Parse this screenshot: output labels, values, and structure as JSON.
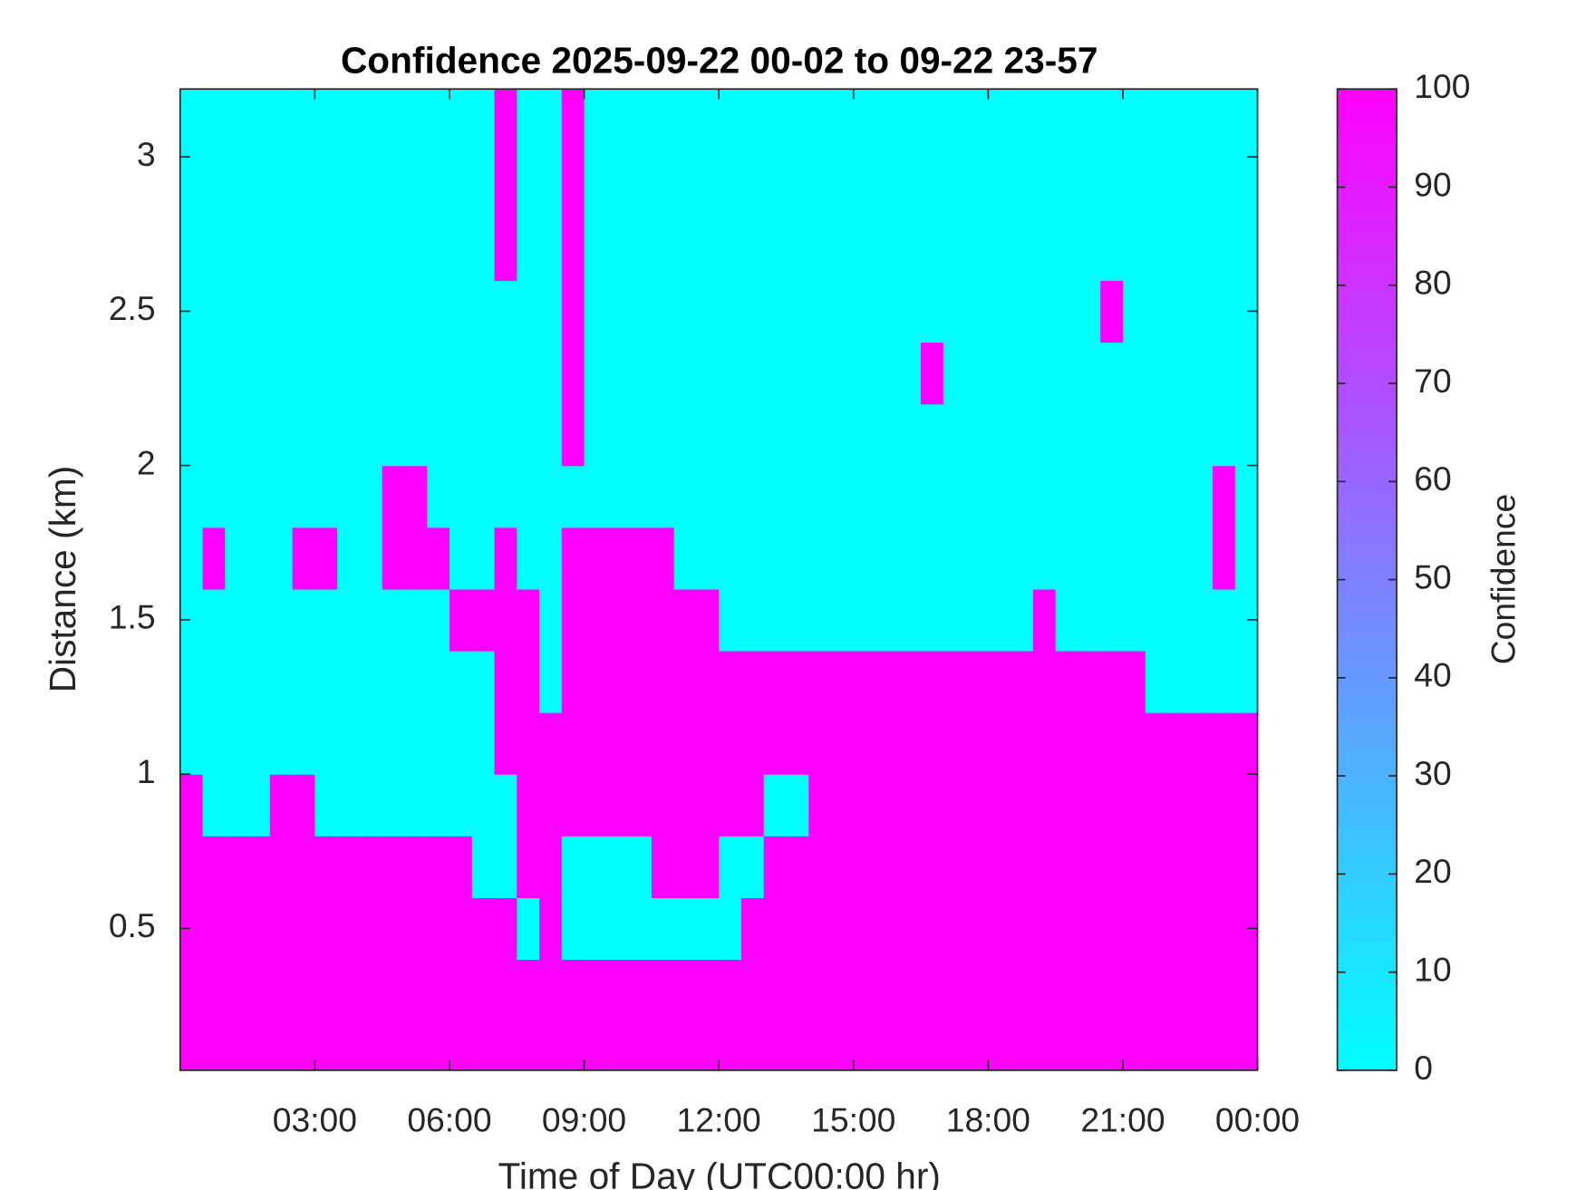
{
  "chart_data": {
    "type": "heatmap",
    "title": "Confidence 2025-09-22 00-02 to 09-22 23-57",
    "x_label": "Time of Day (UTC00:00 hr)",
    "y_label": "Distance (km)",
    "colorbar_label": "Confidence",
    "colormap": [
      "#00ffff",
      "#ff00ff"
    ],
    "clim": [
      0,
      100
    ],
    "cticks": [
      0,
      10,
      20,
      30,
      40,
      50,
      60,
      70,
      80,
      90,
      100
    ],
    "xlim": [
      0,
      24
    ],
    "xticks": [
      {
        "value": 3,
        "label": "03:00"
      },
      {
        "value": 6,
        "label": "06:00"
      },
      {
        "value": 9,
        "label": "09:00"
      },
      {
        "value": 12,
        "label": "12:00"
      },
      {
        "value": 15,
        "label": "15:00"
      },
      {
        "value": 18,
        "label": "18:00"
      },
      {
        "value": 21,
        "label": "21:00"
      },
      {
        "value": 24,
        "label": "00:00"
      }
    ],
    "ylim": [
      0.04,
      3.22
    ],
    "yticks": [
      0.5,
      1,
      1.5,
      2,
      2.5,
      3
    ],
    "x": [
      0.25,
      0.75,
      1.25,
      1.75,
      2.25,
      2.75,
      3.25,
      3.75,
      4.25,
      4.75,
      5.25,
      5.75,
      6.25,
      6.75,
      7.25,
      7.75,
      8.25,
      8.75,
      9.25,
      9.75,
      10.25,
      10.75,
      11.25,
      11.75,
      12.25,
      12.75,
      13.25,
      13.75,
      14.25,
      14.75,
      15.25,
      15.75,
      16.25,
      16.75,
      17.25,
      17.75,
      18.25,
      18.75,
      19.25,
      19.75,
      20.25,
      20.75,
      21.25,
      21.75,
      22.25,
      22.75,
      23.25,
      23.75
    ],
    "y": [
      0.1,
      0.3,
      0.5,
      0.7,
      0.9,
      1.1,
      1.3,
      1.5,
      1.7,
      1.9,
      2.1,
      2.3,
      2.5,
      2.7,
      2.9,
      3.1
    ],
    "values": [
      [
        100,
        100,
        100,
        100,
        100,
        100,
        100,
        100,
        100,
        100,
        100,
        100,
        100,
        100,
        100,
        100,
        100,
        100,
        100,
        100,
        100,
        100,
        100,
        100,
        100,
        100,
        100,
        100,
        100,
        100,
        100,
        100,
        100,
        100,
        100,
        100,
        100,
        100,
        100,
        100,
        100,
        100,
        100,
        100,
        100,
        100,
        100,
        100
      ],
      [
        100,
        100,
        100,
        100,
        100,
        100,
        100,
        100,
        100,
        100,
        100,
        100,
        100,
        100,
        100,
        100,
        100,
        100,
        100,
        100,
        100,
        100,
        100,
        100,
        100,
        100,
        100,
        100,
        100,
        100,
        100,
        100,
        100,
        100,
        100,
        100,
        100,
        100,
        100,
        100,
        100,
        100,
        100,
        100,
        100,
        100,
        100,
        100
      ],
      [
        100,
        100,
        100,
        100,
        100,
        100,
        100,
        100,
        100,
        100,
        100,
        100,
        100,
        100,
        100,
        0,
        100,
        0,
        0,
        0,
        0,
        0,
        0,
        0,
        0,
        100,
        100,
        100,
        100,
        100,
        100,
        100,
        100,
        100,
        100,
        100,
        100,
        100,
        100,
        100,
        100,
        100,
        100,
        100,
        100,
        100,
        100,
        100
      ],
      [
        100,
        100,
        100,
        100,
        100,
        100,
        100,
        100,
        100,
        100,
        100,
        100,
        100,
        0,
        0,
        100,
        100,
        0,
        0,
        0,
        0,
        100,
        100,
        100,
        0,
        0,
        100,
        100,
        100,
        100,
        100,
        100,
        100,
        100,
        100,
        100,
        100,
        100,
        100,
        100,
        100,
        100,
        100,
        100,
        100,
        100,
        100,
        100
      ],
      [
        100,
        0,
        0,
        0,
        100,
        100,
        0,
        0,
        0,
        0,
        0,
        0,
        0,
        0,
        0,
        100,
        100,
        100,
        100,
        100,
        100,
        100,
        100,
        100,
        100,
        100,
        0,
        0,
        100,
        100,
        100,
        100,
        100,
        100,
        100,
        100,
        100,
        100,
        100,
        100,
        100,
        100,
        100,
        100,
        100,
        100,
        100,
        100
      ],
      [
        0,
        0,
        0,
        0,
        0,
        0,
        0,
        0,
        0,
        0,
        0,
        0,
        0,
        0,
        100,
        100,
        100,
        100,
        100,
        100,
        100,
        100,
        100,
        100,
        100,
        100,
        100,
        100,
        100,
        100,
        100,
        100,
        100,
        100,
        100,
        100,
        100,
        100,
        100,
        100,
        100,
        100,
        100,
        100,
        100,
        100,
        100,
        100
      ],
      [
        0,
        0,
        0,
        0,
        0,
        0,
        0,
        0,
        0,
        0,
        0,
        0,
        0,
        0,
        100,
        100,
        0,
        100,
        100,
        100,
        100,
        100,
        100,
        100,
        100,
        100,
        100,
        100,
        100,
        100,
        100,
        100,
        100,
        100,
        100,
        100,
        100,
        100,
        100,
        100,
        100,
        100,
        100,
        0,
        0,
        0,
        0,
        0
      ],
      [
        0,
        0,
        0,
        0,
        0,
        0,
        0,
        0,
        0,
        0,
        0,
        0,
        100,
        100,
        100,
        100,
        0,
        100,
        100,
        100,
        100,
        100,
        100,
        100,
        0,
        0,
        0,
        0,
        0,
        0,
        0,
        0,
        0,
        0,
        0,
        0,
        0,
        0,
        100,
        0,
        0,
        0,
        0,
        0,
        0,
        0,
        0,
        0
      ],
      [
        0,
        100,
        0,
        0,
        0,
        100,
        100,
        0,
        0,
        100,
        100,
        100,
        0,
        0,
        100,
        0,
        0,
        100,
        100,
        100,
        100,
        100,
        0,
        0,
        0,
        0,
        0,
        0,
        0,
        0,
        0,
        0,
        0,
        0,
        0,
        0,
        0,
        0,
        0,
        0,
        0,
        0,
        0,
        0,
        0,
        0,
        100,
        0
      ],
      [
        0,
        0,
        0,
        0,
        0,
        0,
        0,
        0,
        0,
        100,
        100,
        0,
        0,
        0,
        0,
        0,
        0,
        0,
        0,
        0,
        0,
        0,
        0,
        0,
        0,
        0,
        0,
        0,
        0,
        0,
        0,
        0,
        0,
        0,
        0,
        0,
        0,
        0,
        0,
        0,
        0,
        0,
        0,
        0,
        0,
        0,
        100,
        0
      ],
      [
        0,
        0,
        0,
        0,
        0,
        0,
        0,
        0,
        0,
        0,
        0,
        0,
        0,
        0,
        0,
        0,
        0,
        100,
        0,
        0,
        0,
        0,
        0,
        0,
        0,
        0,
        0,
        0,
        0,
        0,
        0,
        0,
        0,
        0,
        0,
        0,
        0,
        0,
        0,
        0,
        0,
        0,
        0,
        0,
        0,
        0,
        0,
        0
      ],
      [
        0,
        0,
        0,
        0,
        0,
        0,
        0,
        0,
        0,
        0,
        0,
        0,
        0,
        0,
        0,
        0,
        0,
        100,
        0,
        0,
        0,
        0,
        0,
        0,
        0,
        0,
        0,
        0,
        0,
        0,
        0,
        0,
        0,
        100,
        0,
        0,
        0,
        0,
        0,
        0,
        0,
        0,
        0,
        0,
        0,
        0,
        0,
        0
      ],
      [
        0,
        0,
        0,
        0,
        0,
        0,
        0,
        0,
        0,
        0,
        0,
        0,
        0,
        0,
        0,
        0,
        0,
        100,
        0,
        0,
        0,
        0,
        0,
        0,
        0,
        0,
        0,
        0,
        0,
        0,
        0,
        0,
        0,
        0,
        0,
        0,
        0,
        0,
        0,
        0,
        0,
        100,
        0,
        0,
        0,
        0,
        0,
        0
      ],
      [
        0,
        0,
        0,
        0,
        0,
        0,
        0,
        0,
        0,
        0,
        0,
        0,
        0,
        0,
        100,
        0,
        0,
        100,
        0,
        0,
        0,
        0,
        0,
        0,
        0,
        0,
        0,
        0,
        0,
        0,
        0,
        0,
        0,
        0,
        0,
        0,
        0,
        0,
        0,
        0,
        0,
        0,
        0,
        0,
        0,
        0,
        0,
        0
      ],
      [
        0,
        0,
        0,
        0,
        0,
        0,
        0,
        0,
        0,
        0,
        0,
        0,
        0,
        0,
        100,
        0,
        0,
        100,
        0,
        0,
        0,
        0,
        0,
        0,
        0,
        0,
        0,
        0,
        0,
        0,
        0,
        0,
        0,
        0,
        0,
        0,
        0,
        0,
        0,
        0,
        0,
        0,
        0,
        0,
        0,
        0,
        0,
        0
      ],
      [
        0,
        0,
        0,
        0,
        0,
        0,
        0,
        0,
        0,
        0,
        0,
        0,
        0,
        0,
        100,
        0,
        0,
        100,
        0,
        0,
        0,
        0,
        0,
        0,
        0,
        0,
        0,
        0,
        0,
        0,
        0,
        0,
        0,
        0,
        0,
        0,
        0,
        0,
        0,
        0,
        0,
        0,
        0,
        0,
        0,
        0,
        0,
        0
      ]
    ]
  }
}
